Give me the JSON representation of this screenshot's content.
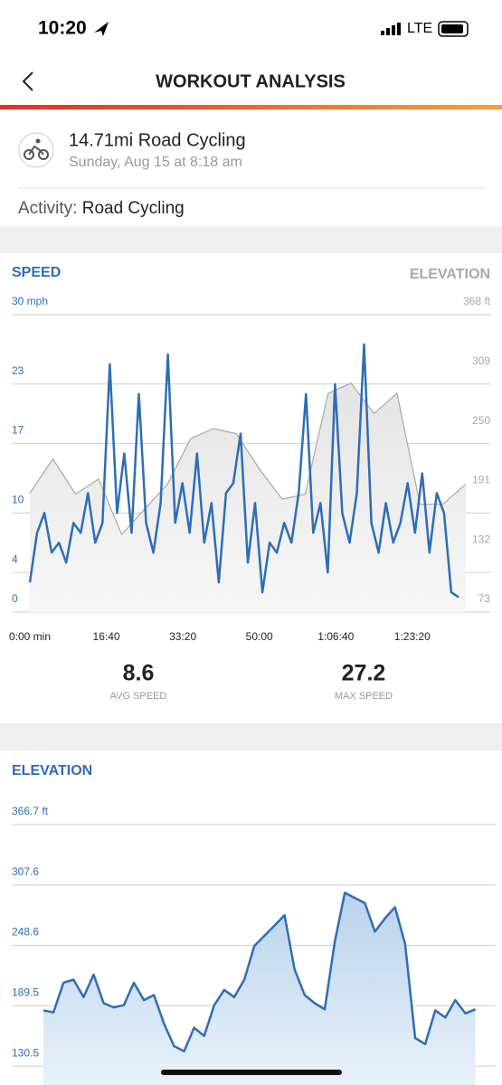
{
  "status_bar": {
    "time": "10:20",
    "network": "LTE"
  },
  "header": {
    "title": "WORKOUT ANALYSIS"
  },
  "workout": {
    "title": "14.71mi Road Cycling",
    "subtitle": "Sunday, Aug 15 at 8:18 am",
    "activity_label": "Activity:",
    "activity": "Road Cycling"
  },
  "stats": [
    {
      "value": "8.6",
      "label": "AVG SPEED"
    },
    {
      "value": "27.2",
      "label": "MAX SPEED"
    }
  ],
  "chart_data": [
    {
      "type": "line",
      "title": "SPEED",
      "y2_title": "ELEVATION",
      "xlim": [
        0,
        5700
      ],
      "xticks": [
        {
          "value": 0,
          "label": "0:00 min"
        },
        {
          "value": 1000,
          "label": "16:40"
        },
        {
          "value": 2000,
          "label": "33:20"
        },
        {
          "value": 3000,
          "label": "50:00"
        },
        {
          "value": 4000,
          "label": "1:06:40"
        },
        {
          "value": 5000,
          "label": "1:23:20"
        }
      ],
      "ylim": [
        0,
        30
      ],
      "yticks": [
        0,
        4,
        10,
        17,
        23,
        {
          "value": 30,
          "label": "30 mph"
        }
      ],
      "y2lim": [
        73,
        368
      ],
      "y2ticks": [
        73,
        132,
        191,
        250,
        309,
        {
          "value": 368,
          "label": "368 ft"
        }
      ],
      "grid": true,
      "series": [
        {
          "name": "SPEED",
          "color": "#2f6db5",
          "x": [
            0,
            95,
            190,
            285,
            380,
            475,
            570,
            665,
            760,
            855,
            950,
            1045,
            1140,
            1235,
            1330,
            1425,
            1520,
            1615,
            1710,
            1805,
            1900,
            1995,
            2090,
            2185,
            2280,
            2375,
            2470,
            2565,
            2660,
            2755,
            2850,
            2945,
            3040,
            3135,
            3230,
            3325,
            3420,
            3515,
            3610,
            3705,
            3800,
            3895,
            3990,
            4085,
            4180,
            4275,
            4370,
            4465,
            4560,
            4655,
            4750,
            4845,
            4940,
            5035,
            5130,
            5225,
            5320,
            5415,
            5510,
            5605
          ],
          "values": [
            3,
            8,
            10,
            6,
            7,
            5,
            9,
            8,
            12,
            7,
            9,
            25,
            10,
            16,
            8,
            22,
            9,
            6,
            11,
            26,
            9,
            13,
            8,
            16,
            7,
            11,
            3,
            12,
            13,
            18,
            5,
            11,
            2,
            7,
            6,
            9,
            7,
            12,
            22,
            8,
            11,
            4,
            23,
            10,
            7,
            12,
            27,
            9,
            6,
            11,
            7,
            9,
            13,
            8,
            14,
            6,
            12,
            10,
            2,
            1.5
          ]
        },
        {
          "name": "ELEVATION",
          "color": "#a8a8a8",
          "axis": "y2",
          "x": [
            0,
            300,
            600,
            900,
            1200,
            1500,
            1800,
            2100,
            2400,
            2700,
            3000,
            3300,
            3600,
            3900,
            4200,
            4500,
            4800,
            5100,
            5400,
            5700
          ],
          "values": [
            191,
            225,
            190,
            205,
            150,
            175,
            200,
            245,
            255,
            250,
            215,
            185,
            190,
            290,
            300,
            270,
            290,
            180,
            180,
            200
          ]
        }
      ]
    },
    {
      "type": "area",
      "title": "ELEVATION",
      "xlim": [
        0,
        5700
      ],
      "ylim": [
        112,
        366.7
      ],
      "yticks": [
        130.5,
        189.5,
        248.6,
        307.6,
        {
          "value": 366.7,
          "label": "366.7 ft"
        }
      ],
      "grid": true,
      "series": [
        {
          "name": "ELEVATION",
          "color": "#2f6db5",
          "x": [
            0,
            130,
            260,
            390,
            520,
            650,
            780,
            910,
            1040,
            1170,
            1300,
            1430,
            1560,
            1690,
            1820,
            1950,
            2080,
            2210,
            2340,
            2470,
            2600,
            2730,
            2860,
            2990,
            3120,
            3250,
            3380,
            3510,
            3640,
            3770,
            3900,
            4030,
            4160,
            4290,
            4420,
            4550,
            4680,
            4810,
            4940,
            5070,
            5200,
            5330,
            5460,
            5590
          ],
          "values": [
            185,
            183,
            212,
            215,
            198,
            220,
            192,
            188,
            190,
            212,
            195,
            200,
            172,
            150,
            145,
            168,
            160,
            190,
            205,
            198,
            215,
            248,
            258,
            268,
            278,
            225,
            200,
            192,
            186,
            252,
            300,
            295,
            290,
            262,
            275,
            286,
            250,
            158,
            152,
            185,
            178,
            195,
            182,
            186
          ]
        }
      ]
    }
  ]
}
